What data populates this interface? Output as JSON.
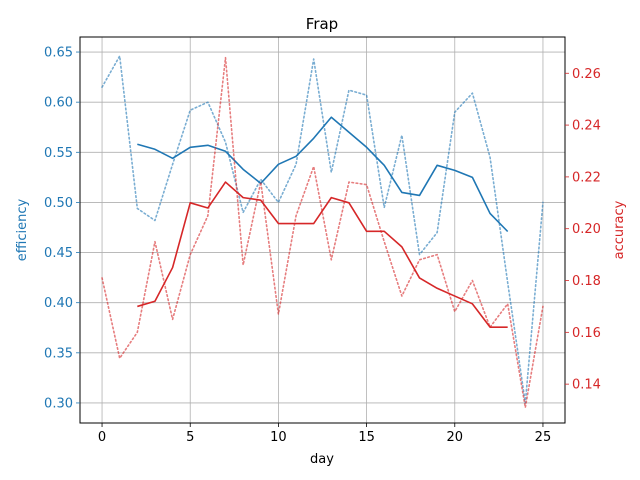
{
  "chart_data": {
    "type": "line",
    "title": "Frap",
    "xlabel": "day",
    "ylabel_left": "efficiency",
    "ylabel_right": "accuracy",
    "xlim": [
      -1.25,
      26.25
    ],
    "ylim_left": [
      0.28,
      0.665
    ],
    "ylim_right": [
      0.125,
      0.274
    ],
    "x_ticks": [
      0,
      5,
      10,
      15,
      20,
      25
    ],
    "y_ticks_left": [
      0.3,
      0.35,
      0.4,
      0.45,
      0.5,
      0.55,
      0.6,
      0.65
    ],
    "y_ticks_right": [
      0.14,
      0.16,
      0.18,
      0.2,
      0.22,
      0.24,
      0.26
    ],
    "grid": true,
    "colors": {
      "efficiency": "#1f77b4",
      "accuracy": "#d62728",
      "grid": "#b0b0b0"
    },
    "series": [
      {
        "axis": "left",
        "style": "dotted",
        "color": "#1f77b4",
        "x": [
          0,
          1,
          2,
          3,
          4,
          5,
          6,
          7,
          8,
          9,
          10,
          11,
          12,
          13,
          14,
          15,
          16,
          17,
          18,
          19,
          20,
          21,
          22,
          23,
          24,
          25
        ],
        "values": [
          0.615,
          0.646,
          0.494,
          0.482,
          0.538,
          0.592,
          0.6,
          0.56,
          0.49,
          0.523,
          0.5,
          0.538,
          0.643,
          0.53,
          0.612,
          0.607,
          0.495,
          0.567,
          0.448,
          0.47,
          0.59,
          0.609,
          0.545,
          0.42,
          0.3,
          0.5
        ]
      },
      {
        "axis": "left",
        "style": "solid",
        "color": "#1f77b4",
        "x": [
          2,
          3,
          4,
          5,
          6,
          7,
          8,
          9,
          10,
          11,
          12,
          13,
          14,
          15,
          16,
          17,
          18,
          19,
          20,
          21,
          22,
          23
        ],
        "values": [
          0.558,
          0.553,
          0.544,
          0.555,
          0.557,
          0.551,
          0.533,
          0.519,
          0.538,
          0.546,
          0.564,
          0.585,
          0.57,
          0.555,
          0.537,
          0.51,
          0.507,
          0.537,
          0.532,
          0.525,
          0.489,
          0.471
        ]
      },
      {
        "axis": "right",
        "style": "dotted",
        "color": "#d62728",
        "x": [
          0,
          1,
          2,
          3,
          4,
          5,
          6,
          7,
          8,
          9,
          10,
          11,
          12,
          13,
          14,
          15,
          16,
          17,
          18,
          19,
          20,
          21,
          22,
          23,
          24,
          25
        ],
        "values": [
          0.181,
          0.15,
          0.16,
          0.195,
          0.165,
          0.19,
          0.205,
          0.266,
          0.186,
          0.218,
          0.167,
          0.205,
          0.224,
          0.188,
          0.218,
          0.217,
          0.195,
          0.174,
          0.188,
          0.19,
          0.168,
          0.18,
          0.162,
          0.171,
          0.131,
          0.17
        ]
      },
      {
        "axis": "right",
        "style": "solid",
        "color": "#d62728",
        "x": [
          2,
          3,
          4,
          5,
          6,
          7,
          8,
          9,
          10,
          11,
          12,
          13,
          14,
          15,
          16,
          17,
          18,
          19,
          20,
          21,
          22,
          23
        ],
        "values": [
          0.17,
          0.172,
          0.185,
          0.21,
          0.208,
          0.218,
          0.212,
          0.211,
          0.202,
          0.202,
          0.202,
          0.212,
          0.21,
          0.199,
          0.199,
          0.193,
          0.181,
          0.177,
          0.174,
          0.171,
          0.162,
          0.162
        ]
      }
    ]
  }
}
